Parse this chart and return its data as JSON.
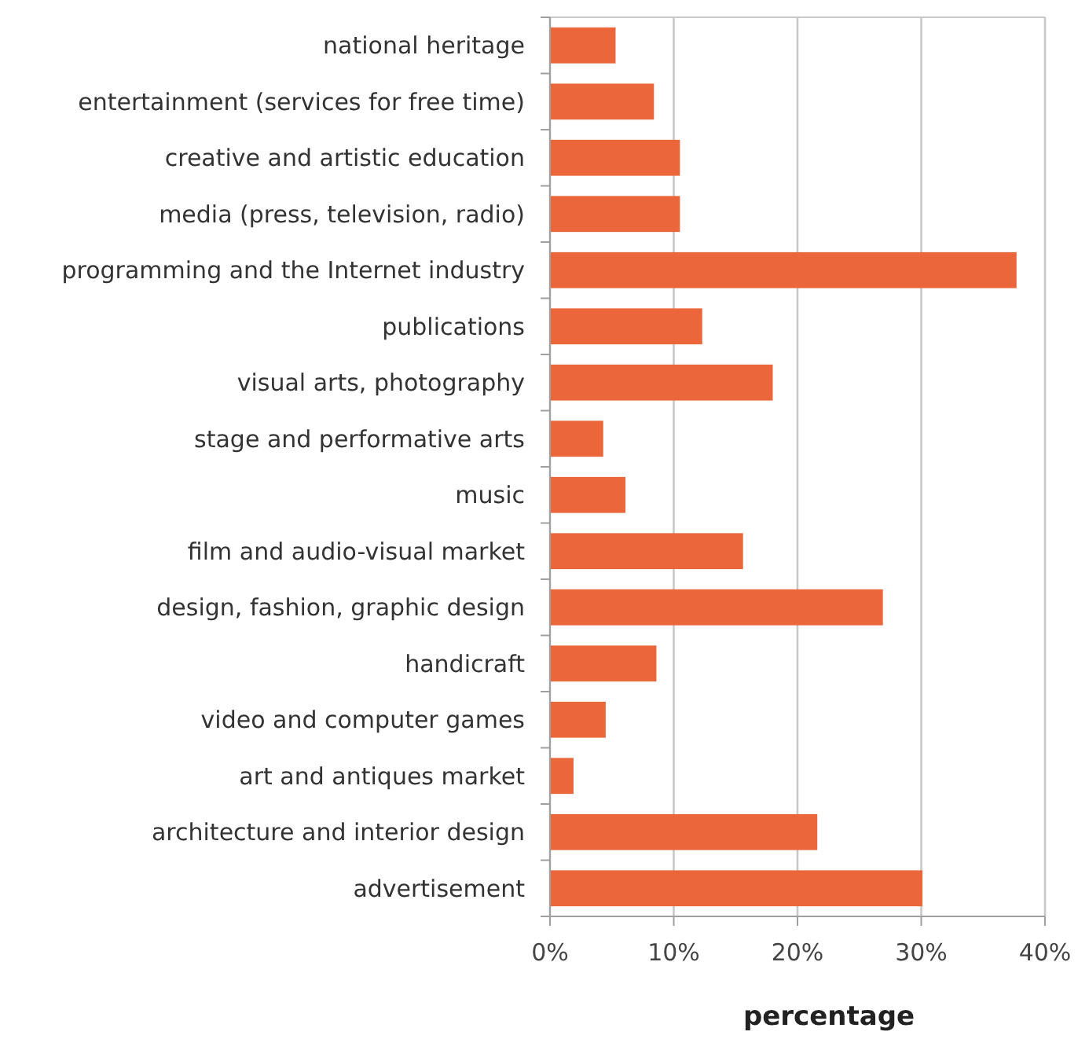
{
  "chart_data": {
    "type": "bar",
    "orientation": "horizontal",
    "xlabel": "percentage",
    "categories": [
      "national heritage",
      "entertainment (services for free time)",
      "creative and artistic education",
      "media (press, television, radio)",
      "programming and the Internet industry",
      "publications",
      "visual arts, photography",
      "stage and performative arts",
      "music",
      "film and audio-visual market",
      "design, fashion, graphic design",
      "handicraft",
      "video and computer games",
      "art and antiques market",
      "architecture and interior design",
      "advertisement"
    ],
    "values": [
      5.3,
      8.4,
      10.5,
      10.5,
      37.7,
      12.3,
      18.0,
      4.3,
      6.1,
      15.6,
      26.9,
      8.6,
      4.5,
      1.9,
      21.6,
      30.1
    ],
    "color": "#eb673b",
    "xlim": [
      0,
      40
    ],
    "xticks": [
      {
        "value": 0,
        "label": "0%"
      },
      {
        "value": 10,
        "label": "10%"
      },
      {
        "value": 20,
        "label": "20%"
      },
      {
        "value": 30,
        "label": "30%"
      },
      {
        "value": 40,
        "label": "40%"
      }
    ],
    "grid": "x"
  }
}
